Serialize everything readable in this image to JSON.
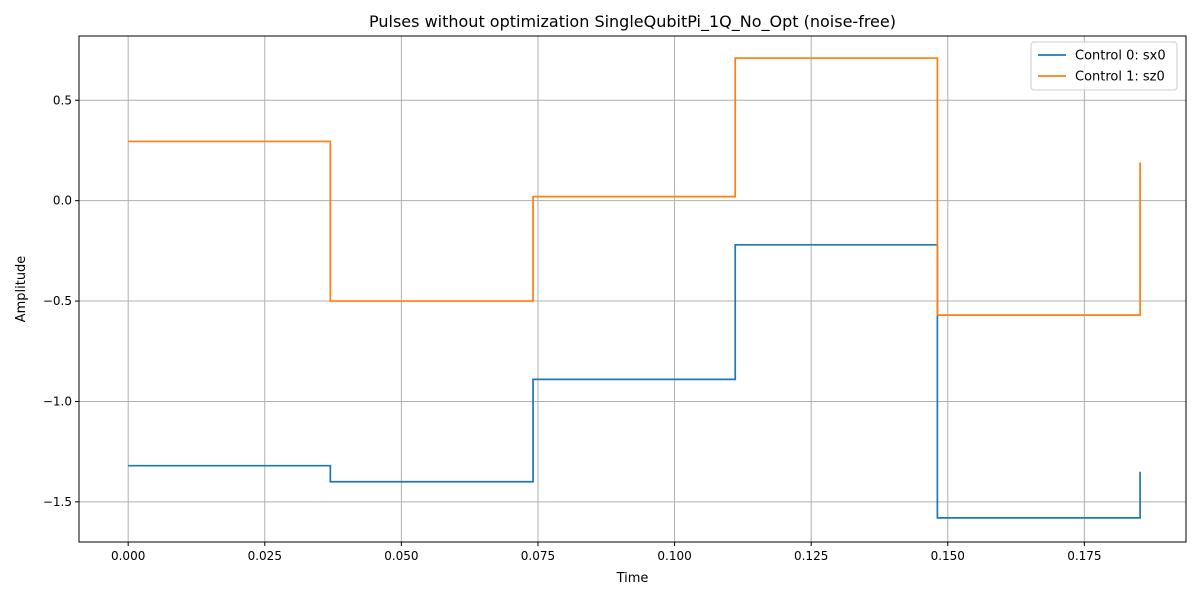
{
  "chart_data": {
    "type": "line",
    "step": "post",
    "title": "Pulses without optimization SingleQubitPi_1Q_No_Opt (noise-free)",
    "xlabel": "Time",
    "ylabel": "Amplitude",
    "xlim": [
      -0.009,
      0.1936
    ],
    "ylim": [
      -1.7,
      0.82
    ],
    "xticks": [
      0.0,
      0.025,
      0.05,
      0.075,
      0.1,
      0.125,
      0.15,
      0.175
    ],
    "xtick_labels": [
      "0.000",
      "0.025",
      "0.050",
      "0.075",
      "0.100",
      "0.125",
      "0.150",
      "0.175"
    ],
    "yticks": [
      -1.5,
      -1.0,
      -0.5,
      0.0,
      0.5
    ],
    "ytick_labels": [
      "−1.5",
      "−1.0",
      "−0.5",
      "0.0",
      "0.5"
    ],
    "grid": true,
    "legend_position": "top-right",
    "x": [
      0.0,
      0.037,
      0.0741,
      0.1111,
      0.1481,
      0.1852
    ],
    "series": [
      {
        "name": "Control 0: sx0",
        "color": "#1f77b4",
        "values": [
          -1.32,
          -1.4,
          -0.89,
          -0.22,
          -1.58,
          -1.35
        ]
      },
      {
        "name": "Control 1: sz0",
        "color": "#ff7f0e",
        "values": [
          0.295,
          -0.5,
          0.02,
          0.71,
          -0.57,
          0.19
        ]
      }
    ]
  }
}
